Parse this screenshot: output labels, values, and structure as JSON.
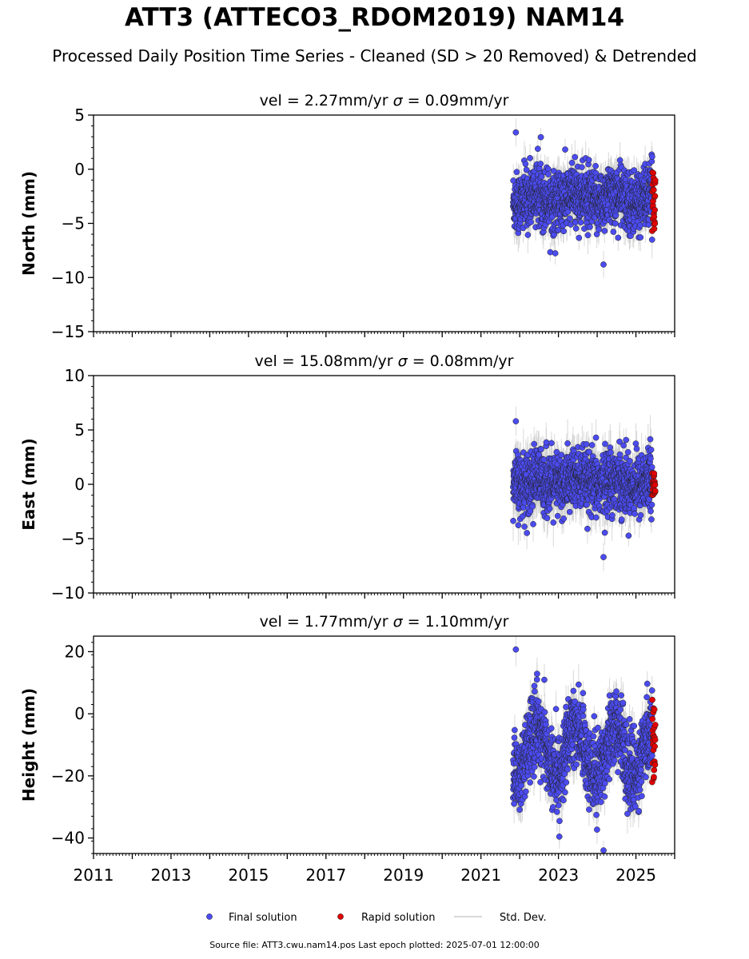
{
  "header": {
    "title": "ATT3 (ATTECO3_RDOM2019) NAM14",
    "subtitle": "Processed Daily Position Time Series - Cleaned (SD > 20 Removed) & Detrended"
  },
  "footer": {
    "source": "Source file: ATT3.cwu.nam14.pos  Last epoch plotted: 2025-07-01 12:00:00"
  },
  "legend": {
    "placement": "bottom-center",
    "items": [
      {
        "label": "Final solution",
        "color": "#4b4bf0"
      },
      {
        "label": "Rapid solution",
        "color": "#e00000"
      },
      {
        "label": "Std. Dev.",
        "color": "#cccccc"
      }
    ]
  },
  "colors": {
    "final": "#4b4bf0",
    "rapid": "#e00000",
    "stddev": "#cccccc"
  },
  "chart_data": [
    {
      "type": "scatter",
      "panel": "north",
      "title_prefix": "vel = 2.27mm/yr   ",
      "title_sigma": "σ",
      "title_suffix": " = 0.09mm/yr",
      "ylabel": "North (mm)",
      "xlim": [
        2011,
        2026
      ],
      "ylim": [
        -15,
        5
      ],
      "yticks": [
        5,
        0,
        -5,
        -10,
        -15
      ],
      "ytick_labels": [
        "5",
        "0",
        "−5",
        "−10",
        "−15"
      ],
      "grid": false,
      "data_start": 2021.83,
      "data_end": 2025.42,
      "rapid_start": 2025.42,
      "rapid_end": 2025.5,
      "final_mean": -2.7,
      "final_spread": 1.4,
      "final_min": -8.8,
      "final_max": 3.4,
      "rapid_min": -5.7,
      "rapid_max": -0.3,
      "final_count": 1310,
      "rapid_count": 25,
      "sd_typical": 1.3,
      "seasonal_amplitude": 0.4
    },
    {
      "type": "scatter",
      "panel": "east",
      "title_prefix": "vel = 15.08mm/yr   ",
      "title_sigma": "σ",
      "title_suffix": " = 0.08mm/yr",
      "ylabel": "East (mm)",
      "xlim": [
        2011,
        2026
      ],
      "ylim": [
        -10,
        10
      ],
      "yticks": [
        10,
        5,
        0,
        -5,
        -10
      ],
      "ytick_labels": [
        "10",
        "5",
        "0",
        "−5",
        "−10"
      ],
      "grid": false,
      "data_start": 2021.83,
      "data_end": 2025.42,
      "rapid_start": 2025.42,
      "rapid_end": 2025.5,
      "final_mean": 0.2,
      "final_spread": 1.4,
      "final_min": -6.7,
      "final_max": 5.8,
      "rapid_min": -1.0,
      "rapid_max": 1.0,
      "final_count": 1310,
      "rapid_count": 25,
      "sd_typical": 1.6,
      "seasonal_amplitude": 0.3
    },
    {
      "type": "scatter",
      "panel": "height",
      "title_prefix": "vel = 1.77mm/yr   ",
      "title_sigma": "σ",
      "title_suffix": " = 1.10mm/yr",
      "ylabel": "Height (mm)",
      "xlim": [
        2011,
        2026
      ],
      "ylim": [
        -45,
        25
      ],
      "yticks": [
        20,
        0,
        -20,
        -40
      ],
      "ytick_labels": [
        "20",
        "0",
        "−20",
        "−40"
      ],
      "grid": false,
      "data_start": 2021.83,
      "data_end": 2025.42,
      "rapid_start": 2025.42,
      "rapid_end": 2025.5,
      "final_mean": -12.0,
      "final_spread": 6.0,
      "final_min": -44.0,
      "final_max": 20.7,
      "rapid_min": -22.0,
      "rapid_max": 4.5,
      "final_count": 1310,
      "rapid_count": 25,
      "sd_typical": 5.0,
      "seasonal_amplitude": 8.0
    }
  ],
  "xaxis": {
    "ticks": [
      2011,
      2013,
      2015,
      2017,
      2019,
      2021,
      2023,
      2025
    ],
    "tick_labels": [
      "2011",
      "2013",
      "2015",
      "2017",
      "2019",
      "2021",
      "2023",
      "2025"
    ]
  }
}
